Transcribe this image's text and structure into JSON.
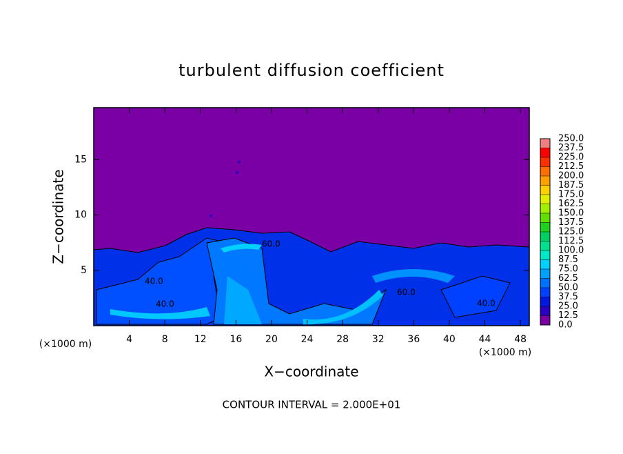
{
  "chart_data": {
    "type": "contour",
    "title": "turbulent diffusion coefficient",
    "x_label": "X−coordinate",
    "y_label": "Z−coordinate",
    "x_unit_left": "(×1000 m)",
    "x_unit_right": "(×1000 m)",
    "footer": "CONTOUR INTERVAL = 2.000E+01",
    "contour_labels": [
      "40.0",
      "40.0",
      "60.0",
      "60.0",
      "40.0"
    ],
    "xlim": [
      0,
      49
    ],
    "xticks": [
      4,
      8,
      12,
      16,
      20,
      24,
      28,
      32,
      36,
      40,
      44,
      48
    ],
    "ylim": [
      0,
      19.7
    ],
    "yticks": [
      5,
      10,
      15
    ],
    "colorbar": {
      "levels": [
        {
          "value": 0,
          "label": "0.0"
        },
        {
          "value": 12.5,
          "label": "12.5"
        },
        {
          "value": 25,
          "label": "25.0"
        },
        {
          "value": 37.5,
          "label": "37.5"
        },
        {
          "value": 50,
          "label": "50.0"
        },
        {
          "value": 62.5,
          "label": "62.5"
        },
        {
          "value": 75,
          "label": "75.0"
        },
        {
          "value": 87.5,
          "label": "87.5"
        },
        {
          "value": 100,
          "label": "100.0"
        },
        {
          "value": 112.5,
          "label": "112.5"
        },
        {
          "value": 125,
          "label": "125.0"
        },
        {
          "value": 137.5,
          "label": "137.5"
        },
        {
          "value": 150,
          "label": "150.0"
        },
        {
          "value": 162.5,
          "label": "162.5"
        },
        {
          "value": 175,
          "label": "175.0"
        },
        {
          "value": 187.5,
          "label": "187.5"
        },
        {
          "value": 200,
          "label": "200.0"
        },
        {
          "value": 212.5,
          "label": "212.5"
        },
        {
          "value": 225,
          "label": "225.0"
        },
        {
          "value": 237.5,
          "label": "237.5"
        },
        {
          "value": 250,
          "label": "250.0"
        }
      ],
      "colors": [
        "#7a00a6",
        "#2a00c0",
        "#0018e0",
        "#0040ff",
        "#0070ff",
        "#00a0ff",
        "#00d0ff",
        "#00e8c8",
        "#00e090",
        "#00d060",
        "#20d020",
        "#60e000",
        "#a0f000",
        "#e0f000",
        "#ffd000",
        "#ffa000",
        "#ff7000",
        "#ff3000",
        "#ff0000",
        "#f08080"
      ]
    }
  }
}
